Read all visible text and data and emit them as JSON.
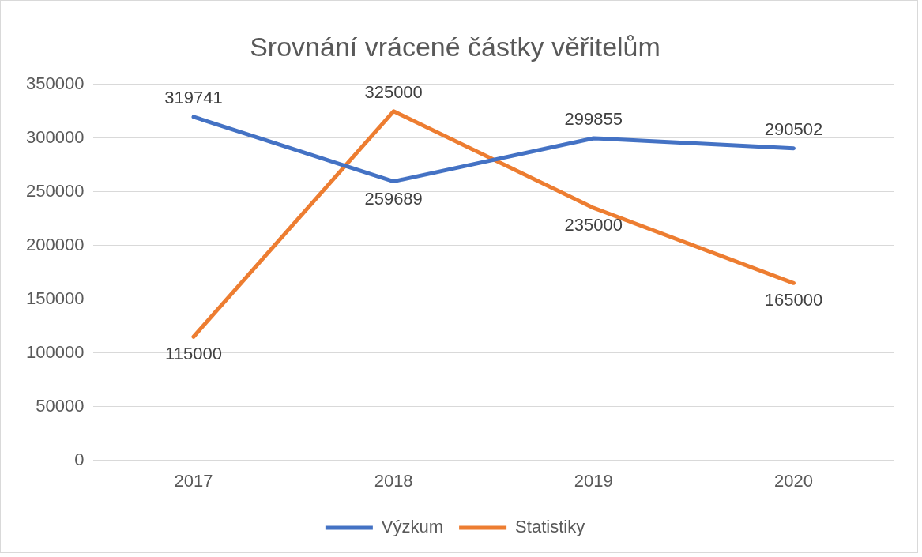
{
  "chart_data": {
    "type": "line",
    "title": "Srovnání vrácené částky věřitelům",
    "categories": [
      "2017",
      "2018",
      "2019",
      "2020"
    ],
    "series": [
      {
        "name": "Výzkum",
        "color": "#4472c4",
        "values": [
          319741,
          259689,
          299855,
          290502
        ]
      },
      {
        "name": "Statistiky",
        "color": "#ed7d31",
        "values": [
          115000,
          325000,
          235000,
          165000
        ]
      }
    ],
    "ylim": [
      0,
      350000
    ],
    "yticks": [
      0,
      50000,
      100000,
      150000,
      200000,
      250000,
      300000,
      350000
    ],
    "grid": "y",
    "legend": "bottom",
    "data_labels": true,
    "marker": "none",
    "line_style": "solid"
  }
}
